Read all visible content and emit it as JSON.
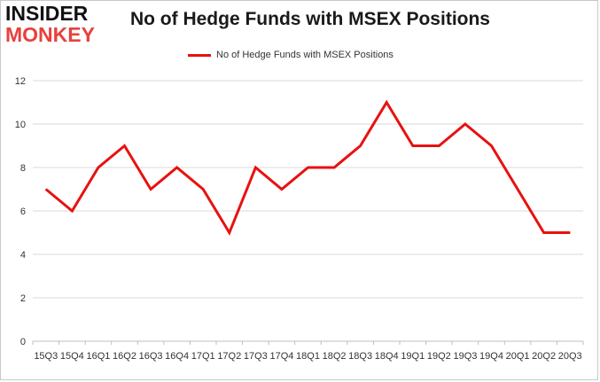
{
  "logo": {
    "line1": "INSIDER",
    "line2": "MONKEY"
  },
  "chart_data": {
    "type": "line",
    "title": "No of Hedge Funds with MSEX Positions",
    "xlabel": "",
    "ylabel": "",
    "categories": [
      "2015Q3",
      "2015Q4",
      "2016Q1",
      "2016Q2",
      "2016Q3",
      "2016Q4",
      "2017Q1",
      "2017Q2",
      "2017Q3",
      "2017Q4",
      "2018Q1",
      "2018Q2",
      "2018Q3",
      "2018Q4",
      "2019Q1",
      "2019Q2",
      "2019Q3",
      "2019Q4",
      "2020Q1",
      "2020Q2",
      "2020Q3"
    ],
    "tick_labels": [
      "15Q3",
      "15Q4",
      "16Q1",
      "16Q2",
      "16Q3",
      "16Q4",
      "17Q1",
      "17Q2",
      "17Q3",
      "17Q4",
      "18Q1",
      "18Q2",
      "18Q3",
      "18Q4",
      "19Q1",
      "19Q2",
      "19Q3",
      "19Q4",
      "20Q1",
      "20Q2",
      "20Q3"
    ],
    "series": [
      {
        "name": "No of Hedge Funds with MSEX Positions",
        "values": [
          7,
          6,
          8,
          9,
          7,
          8,
          7,
          5,
          8,
          7,
          8,
          8,
          9,
          11,
          9,
          9,
          10,
          9,
          7,
          5,
          5
        ]
      }
    ],
    "ylim": [
      0,
      12
    ],
    "yticks": [
      0,
      2,
      4,
      6,
      8,
      10,
      12
    ],
    "grid": true,
    "legend": "top-center",
    "line_color": "#e8110f"
  }
}
